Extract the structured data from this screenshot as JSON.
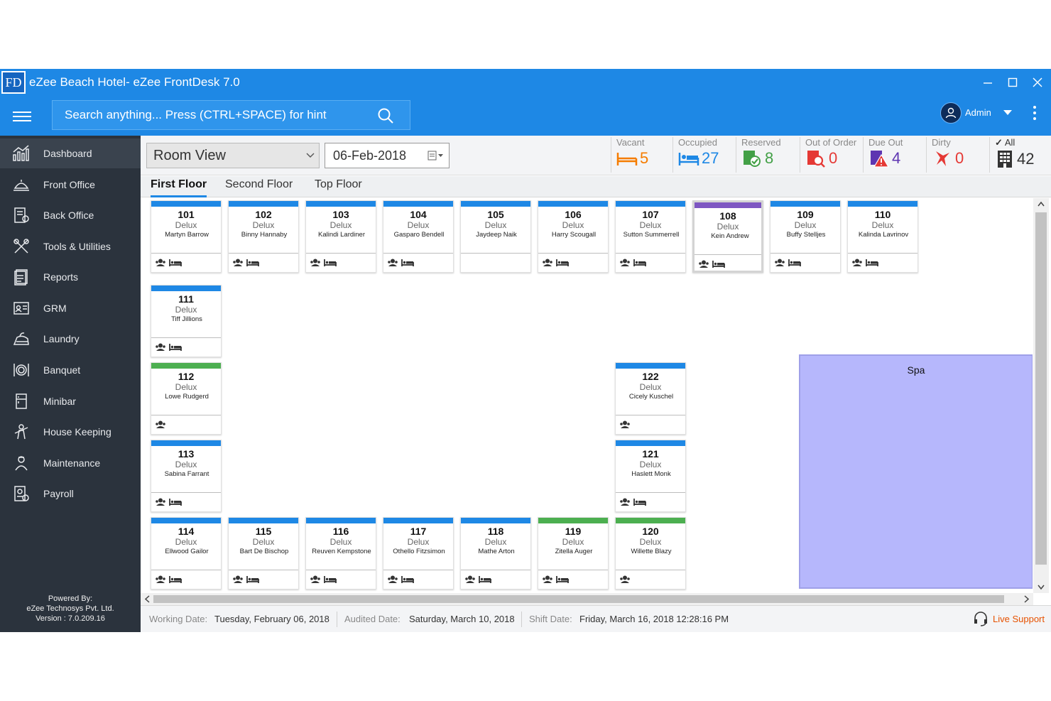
{
  "window": {
    "logo_text": "FD",
    "title": "eZee Beach Hotel- eZee FrontDesk 7.0"
  },
  "search": {
    "placeholder": "Search anything... Press (CTRL+SPACE) for hint"
  },
  "user": {
    "name": "Admin"
  },
  "sidebar": {
    "items": [
      {
        "label": "Dashboard",
        "icon": "dashboard-icon"
      },
      {
        "label": "Front Office",
        "icon": "front-office-icon"
      },
      {
        "label": "Back Office",
        "icon": "back-office-icon"
      },
      {
        "label": "Tools & Utilities",
        "icon": "tools-icon"
      },
      {
        "label": "Reports",
        "icon": "reports-icon"
      },
      {
        "label": "GRM",
        "icon": "grm-icon"
      },
      {
        "label": "Laundry",
        "icon": "laundry-icon"
      },
      {
        "label": "Banquet",
        "icon": "banquet-icon"
      },
      {
        "label": "Minibar",
        "icon": "minibar-icon"
      },
      {
        "label": "House Keeping",
        "icon": "housekeeping-icon"
      },
      {
        "label": "Maintenance",
        "icon": "maintenance-icon"
      },
      {
        "label": "Payroll",
        "icon": "payroll-icon"
      }
    ],
    "powered_by": "Powered By:",
    "company": "eZee Technosys Pvt. Ltd.",
    "version": "Version : 7.0.209.16"
  },
  "viewbar": {
    "view_selected": "Room View",
    "date": "06-Feb-2018"
  },
  "stats": [
    {
      "label": "Vacant",
      "value": "5",
      "color": "#f57c00",
      "icon": "vacant-bed-icon"
    },
    {
      "label": "Occupied",
      "value": "27",
      "color": "#1e88e5",
      "icon": "occupied-bed-icon"
    },
    {
      "label": "Reserved",
      "value": "8",
      "color": "#43a047",
      "icon": "reserved-icon"
    },
    {
      "label": "Out of Order",
      "value": "0",
      "color": "#e53935",
      "icon": "out-of-order-icon"
    },
    {
      "label": "Due Out",
      "value": "4",
      "color": "#5e35b1",
      "icon": "due-out-icon"
    },
    {
      "label": "Dirty",
      "value": "0",
      "color": "#e53935",
      "icon": "dirty-icon"
    },
    {
      "label": "All",
      "value": "42",
      "color": "#333333",
      "icon": "all-rooms-icon"
    }
  ],
  "floors": [
    "First Floor",
    "Second Floor",
    "Top Floor"
  ],
  "rooms": [
    {
      "no": "101",
      "type": "Delux",
      "guest": "Martyn Barrow",
      "status_color": "#1e88e5",
      "icons": [
        "guest-icon",
        "bed-icon"
      ]
    },
    {
      "no": "102",
      "type": "Delux",
      "guest": "Binny Hannaby",
      "status_color": "#1e88e5",
      "icons": [
        "guest-icon",
        "bed-icon"
      ]
    },
    {
      "no": "103",
      "type": "Delux",
      "guest": "Kalindi Lardiner",
      "status_color": "#1e88e5",
      "icons": [
        "guest-icon",
        "bed-icon"
      ]
    },
    {
      "no": "104",
      "type": "Delux",
      "guest": "Gasparo Bendell",
      "status_color": "#1e88e5",
      "icons": [
        "guest-icon",
        "bed-icon"
      ]
    },
    {
      "no": "105",
      "type": "Delux",
      "guest": "Jaydeep Naik",
      "status_color": "#1e88e5",
      "icons": []
    },
    {
      "no": "106",
      "type": "Delux",
      "guest": "Harry Scougall",
      "status_color": "#1e88e5",
      "icons": [
        "guest-icon",
        "bed-icon"
      ]
    },
    {
      "no": "107",
      "type": "Delux",
      "guest": "Sutton Summerrell",
      "status_color": "#1e88e5",
      "icons": [
        "guest-icon",
        "bed-icon"
      ]
    },
    {
      "no": "108",
      "type": "Delux",
      "guest": "Kein Andrew",
      "status_color": "#7e57c2",
      "icons": [
        "guest-icon",
        "bed-icon"
      ],
      "selected": true
    },
    {
      "no": "109",
      "type": "Delux",
      "guest": "Buffy Stelljes",
      "status_color": "#1e88e5",
      "icons": [
        "guest-icon",
        "bed-icon"
      ]
    },
    {
      "no": "110",
      "type": "Delux",
      "guest": "Kalinda Lavrinov",
      "status_color": "#1e88e5",
      "icons": [
        "guest-icon",
        "bed-icon"
      ]
    },
    {
      "no": "111",
      "type": "Delux",
      "guest": "Tiff Jillions",
      "status_color": "#1e88e5",
      "icons": [
        "guest-icon",
        "bed-icon"
      ]
    },
    {
      "no": "112",
      "type": "Delux",
      "guest": "Lowe Rudgerd",
      "status_color": "#4caf50",
      "icons": [
        "guest-icon"
      ]
    },
    {
      "no": "113",
      "type": "Delux",
      "guest": "Sabina Farrant",
      "status_color": "#1e88e5",
      "icons": [
        "guest-icon",
        "bed-icon"
      ]
    },
    {
      "no": "114",
      "type": "Delux",
      "guest": "Ellwood Gailor",
      "status_color": "#1e88e5",
      "icons": [
        "guest-icon",
        "bed-icon"
      ]
    },
    {
      "no": "115",
      "type": "Delux",
      "guest": "Bart De Bischop",
      "status_color": "#1e88e5",
      "icons": [
        "guest-icon",
        "bed-icon"
      ]
    },
    {
      "no": "116",
      "type": "Delux",
      "guest": "Reuven Kempstone",
      "status_color": "#1e88e5",
      "icons": [
        "guest-icon",
        "bed-icon"
      ]
    },
    {
      "no": "117",
      "type": "Delux",
      "guest": "Othello Fitzsimon",
      "status_color": "#1e88e5",
      "icons": [
        "guest-icon",
        "bed-icon"
      ]
    },
    {
      "no": "118",
      "type": "Delux",
      "guest": "Mathe Arton",
      "status_color": "#1e88e5",
      "icons": [
        "guest-icon",
        "bed-icon"
      ]
    },
    {
      "no": "119",
      "type": "Delux",
      "guest": "Zitella Auger",
      "status_color": "#4caf50",
      "icons": [
        "guest-icon",
        "bed-icon"
      ]
    },
    {
      "no": "120",
      "type": "Delux",
      "guest": "Willette Blazy",
      "status_color": "#4caf50",
      "icons": [
        "guest-icon"
      ]
    },
    {
      "no": "121",
      "type": "Delux",
      "guest": "Haslett Monk",
      "status_color": "#1e88e5",
      "icons": [
        "guest-icon",
        "bed-icon"
      ]
    },
    {
      "no": "122",
      "type": "Delux",
      "guest": "Cicely Kuschel",
      "status_color": "#1e88e5",
      "icons": [
        "guest-icon"
      ]
    }
  ],
  "spa": {
    "label": "Spa",
    "color": "#b6b7fc"
  },
  "status": {
    "working_label": "Working Date:",
    "working_value": "Tuesday, February 06, 2018",
    "audited_label": "Audited Date:",
    "audited_value": "Saturday, March 10, 2018",
    "shift_label": "Shift Date:",
    "shift_value": "Friday, March 16, 2018 12:28:16 PM",
    "live_support": "Live Support"
  }
}
